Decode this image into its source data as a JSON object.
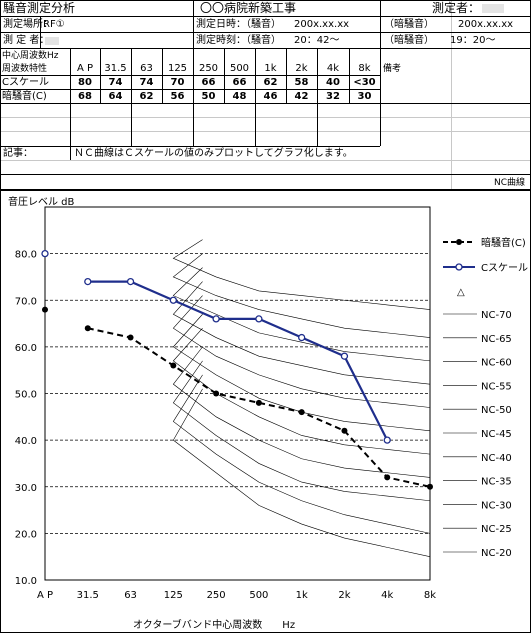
{
  "sheet": {
    "title": "騒音測定分析",
    "project": "〇〇病院新築工事",
    "measurer_label": "測定者：",
    "location_label": "測定場所：",
    "location_value": "RF①",
    "date_label": "測定日時：（騒音）",
    "date_value1": "200x.xx.xx",
    "dark_label1": "（暗騒音）",
    "date_value2": "200x.xx.xx",
    "measurer2_label": "測 定 者：",
    "time_label": "測定時刻：（騒音）",
    "time_value1": "20：42～",
    "dark_label2": "（暗騒音）",
    "time_value2": "19：20～",
    "freq_header1": "中心周波数Hz",
    "freq_header2": "周波数特性",
    "bands": [
      "A P",
      "31.5",
      "63",
      "125",
      "250",
      "500",
      "1k",
      "2k",
      "4k",
      "8k"
    ],
    "remarks_header": "備考",
    "row_c_label": "Cスケール",
    "row_c_values": [
      "80",
      "74",
      "74",
      "70",
      "66",
      "66",
      "62",
      "58",
      "40",
      "<30"
    ],
    "row_dark_label": "暗騒音(C)",
    "row_dark_values": [
      "68",
      "64",
      "62",
      "56",
      "50",
      "48",
      "46",
      "42",
      "32",
      "30"
    ],
    "note_label": "記事：",
    "note_text": "ＮＣ曲線はＣスケールの値のみプロットしてグラフ化します。",
    "nc_tag": "NC曲線"
  },
  "chart_data": {
    "type": "line",
    "ylabel": "音圧レベル dB",
    "xlabel": "オクターブバンド中心周波数　　Hz",
    "categories": [
      "A P",
      "31.5",
      "63",
      "125",
      "250",
      "500",
      "1k",
      "2k",
      "4k",
      "8k"
    ],
    "ylim": [
      10,
      90
    ],
    "yticks": [
      "10.0",
      "20.0",
      "30.0",
      "40.0",
      "50.0",
      "60.0",
      "70.0",
      "80.0"
    ],
    "grid": true,
    "legend_position": "right",
    "series": [
      {
        "name": "暗騒音(C)",
        "values": [
          68,
          64,
          62,
          56,
          50,
          48,
          46,
          42,
          32,
          30
        ],
        "color": "#000000",
        "style": "dashed-filled-marker"
      },
      {
        "name": "Cスケール",
        "values": [
          80,
          74,
          74,
          70,
          66,
          66,
          62,
          58,
          40,
          null
        ],
        "color": "#1f2e8c",
        "style": "solid-open-marker"
      }
    ],
    "extra_legend_marker": "△",
    "nc_curves": [
      {
        "name": "NC-70",
        "values": [
          83,
          79,
          75,
          72,
          71,
          70,
          69
        ]
      },
      {
        "name": "NC-65",
        "values": [
          80,
          75,
          71,
          68,
          66,
          64,
          63
        ]
      },
      {
        "name": "NC-60",
        "values": [
          77,
          71,
          67,
          63,
          61,
          59,
          58
        ]
      },
      {
        "name": "NC-55",
        "values": [
          74,
          67,
          62,
          58,
          56,
          54,
          53
        ]
      },
      {
        "name": "NC-50",
        "values": [
          71,
          64,
          58,
          54,
          51,
          49,
          48
        ]
      },
      {
        "name": "NC-45",
        "values": [
          67,
          60,
          54,
          49,
          46,
          44,
          43
        ]
      },
      {
        "name": "NC-40",
        "values": [
          64,
          57,
          50,
          45,
          41,
          39,
          38
        ]
      },
      {
        "name": "NC-35",
        "values": [
          60,
          52,
          45,
          40,
          36,
          34,
          33
        ]
      },
      {
        "name": "NC-30",
        "values": [
          57,
          48,
          41,
          35,
          31,
          29,
          28
        ]
      },
      {
        "name": "NC-25",
        "values": [
          54,
          44,
          37,
          31,
          27,
          24,
          22
        ]
      },
      {
        "name": "NC-20",
        "values": [
          51,
          40,
          33,
          26,
          22,
          19,
          17
        ]
      }
    ]
  }
}
